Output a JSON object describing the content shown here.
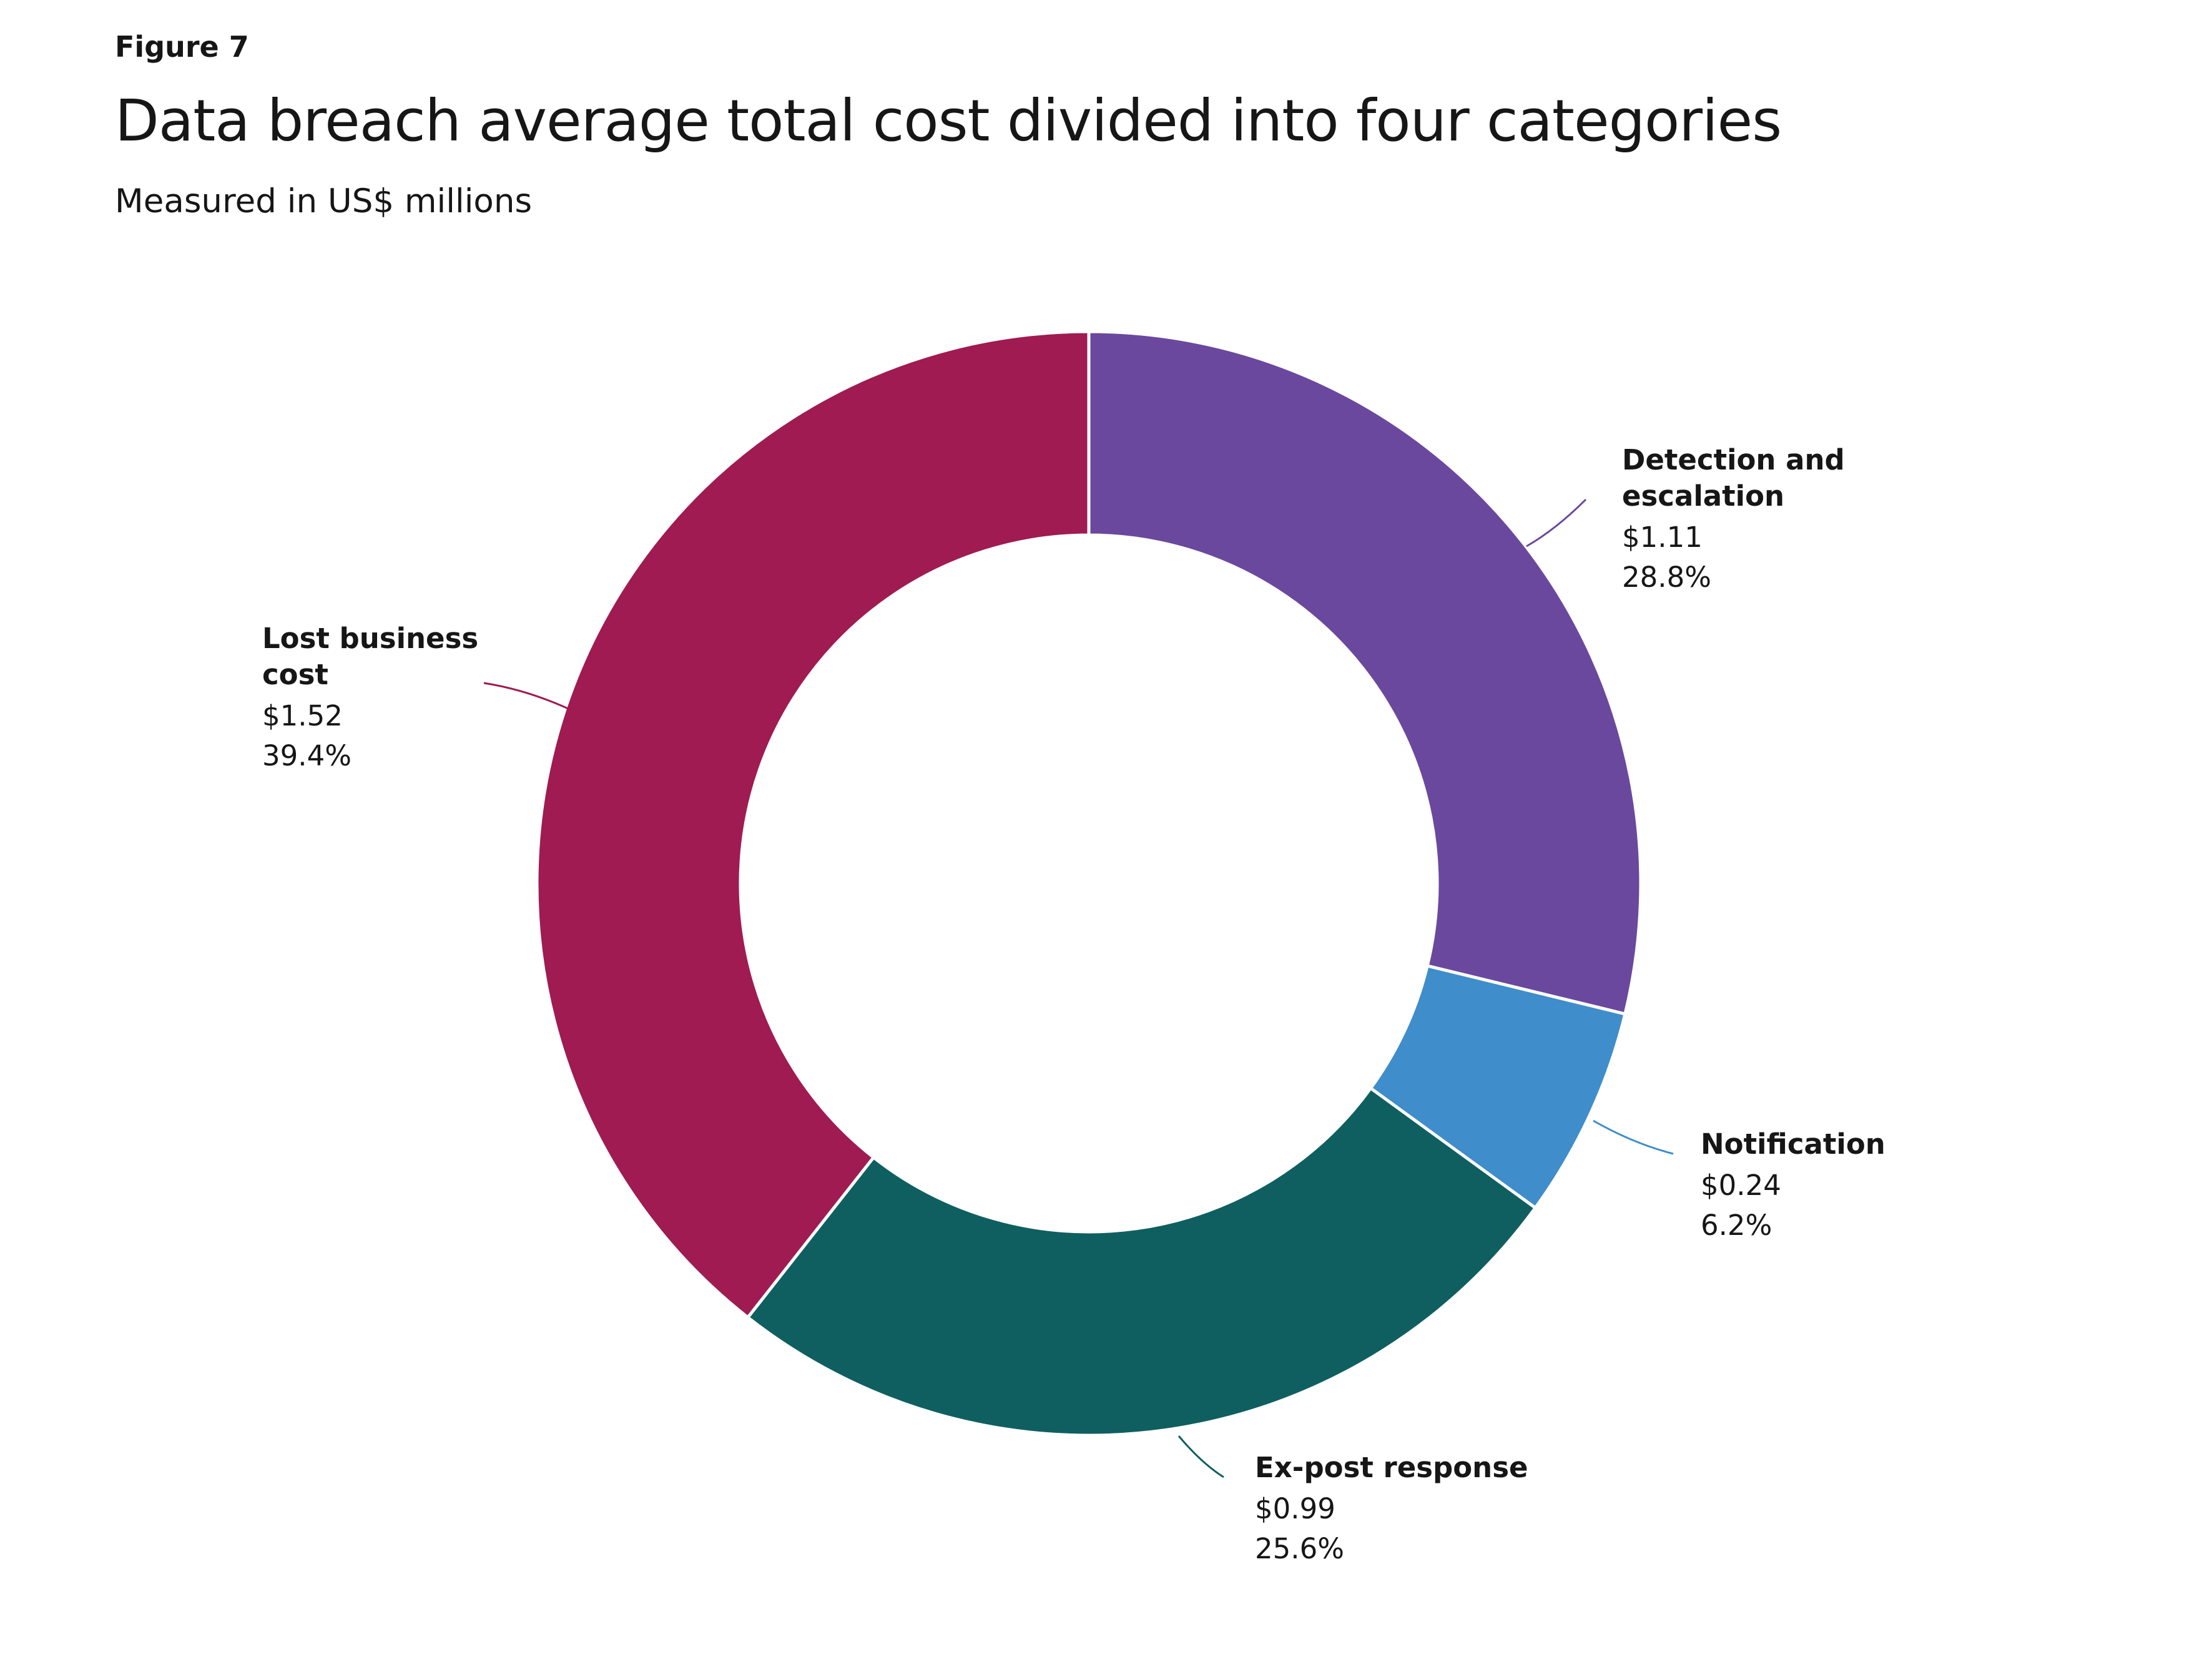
{
  "figure_label": "Figure 7",
  "chart_data": {
    "type": "pie",
    "title": "Data breach average total cost divided into four categories",
    "subtitle": "Measured in US$ millions",
    "donut": true,
    "slices": [
      {
        "name_lines": [
          "Detection and",
          "escalation"
        ],
        "value": 1.11,
        "value_label": "$1.11",
        "percent": 28.8,
        "percent_label": "28.8%",
        "color": "#6a489e"
      },
      {
        "name_lines": [
          "Notification"
        ],
        "value": 0.24,
        "value_label": "$0.24",
        "percent": 6.2,
        "percent_label": "6.2%",
        "color": "#3f8dca"
      },
      {
        "name_lines": [
          "Ex-post response"
        ],
        "value": 0.99,
        "value_label": "$0.99",
        "percent": 25.6,
        "percent_label": "25.6%",
        "color": "#0f5f61"
      },
      {
        "name_lines": [
          "Lost business",
          "cost"
        ],
        "value": 1.52,
        "value_label": "$1.52",
        "percent": 39.4,
        "percent_label": "39.4%",
        "color": "#9f1b51"
      }
    ]
  }
}
